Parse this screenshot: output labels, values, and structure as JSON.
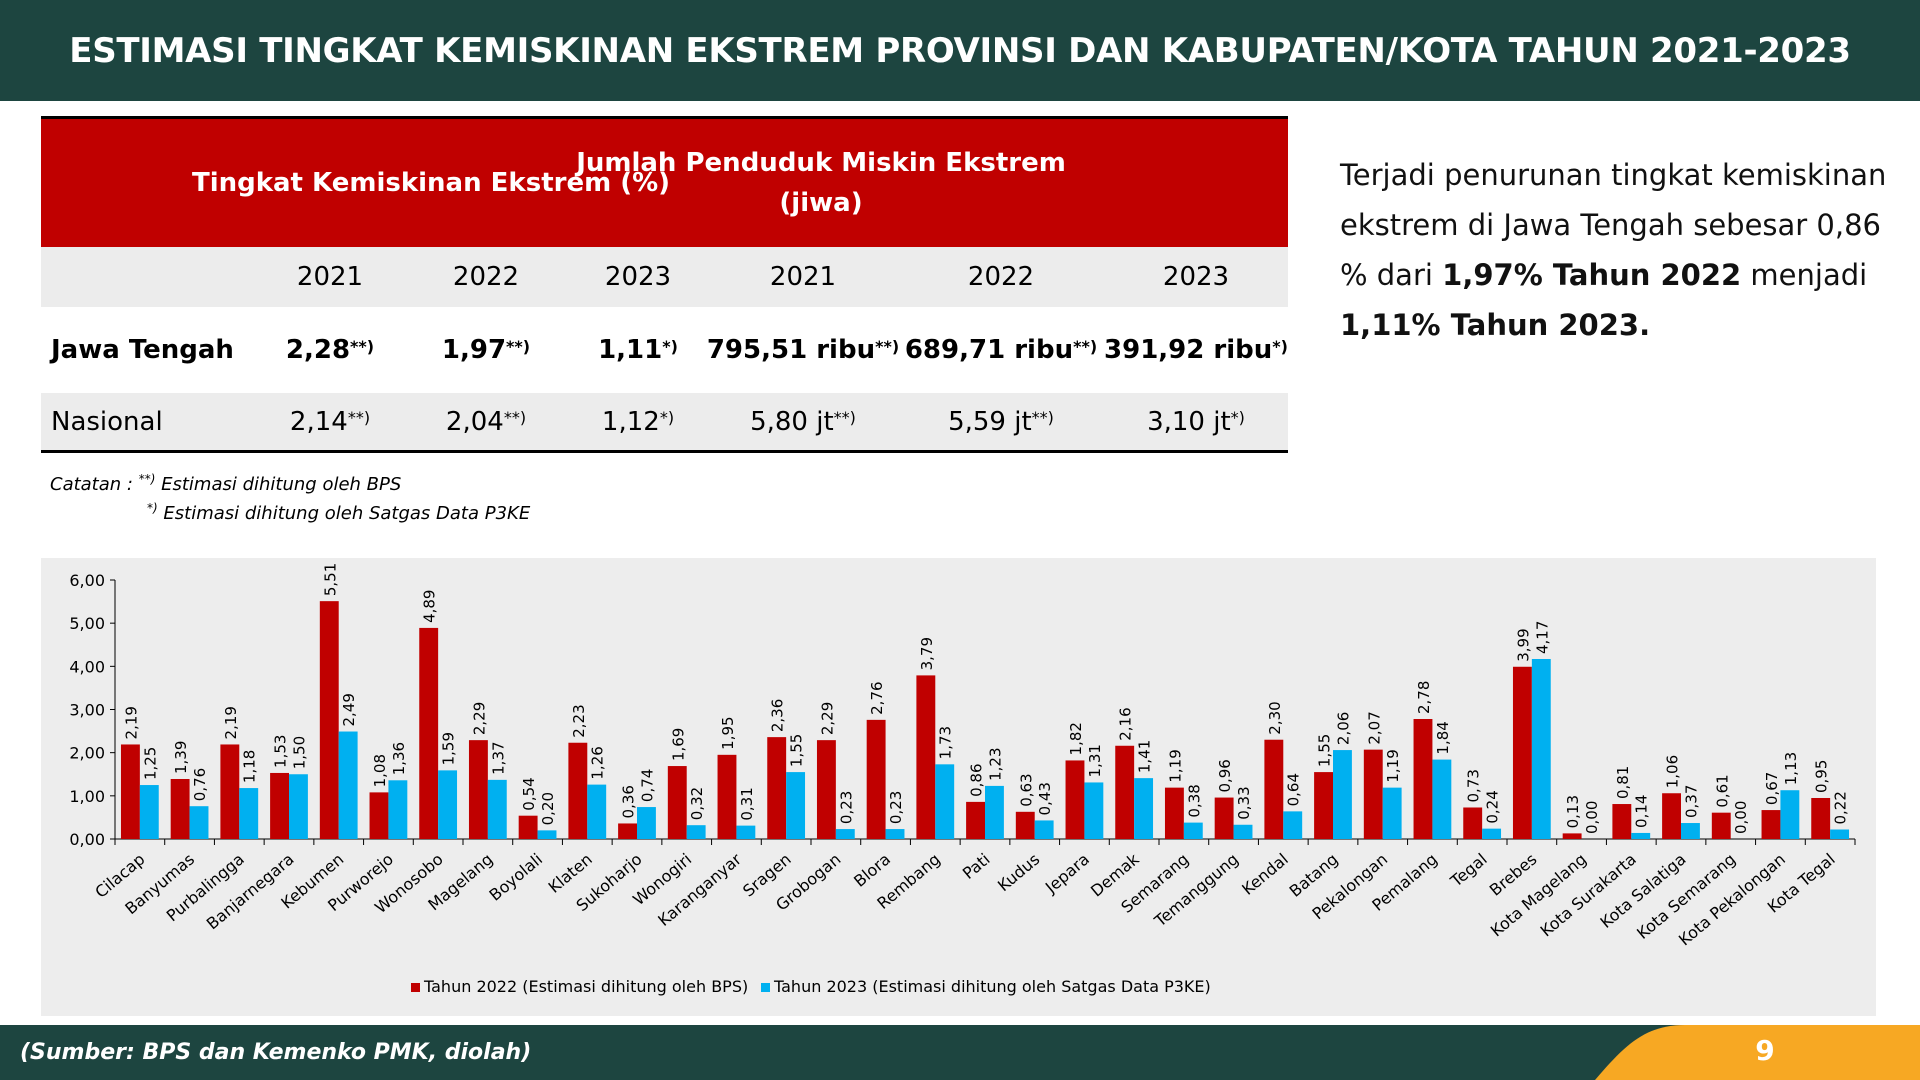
{
  "title": "ESTIMASI TINGKAT KEMISKINAN EKSTREM PROVINSI DAN KABUPATEN/KOTA TAHUN 2021-2023",
  "table": {
    "group1": "Tingkat Kemiskinan Ekstrem (%)",
    "group2_line1": "Jumlah Penduduk Miskin Ekstrem",
    "group2_line2": "(jiwa)",
    "years": [
      "2021",
      "2022",
      "2023",
      "2021",
      "2022",
      "2023"
    ],
    "rows": [
      {
        "label": "Jawa Tengah",
        "cells": [
          {
            "v": "2,28",
            "s": "**)"
          },
          {
            "v": "1,97",
            "s": "**)"
          },
          {
            "v": "1,11",
            "s": "*)"
          },
          {
            "v": "795,51 ribu",
            "s": "**)"
          },
          {
            "v": "689,71 ribu",
            "s": "**)"
          },
          {
            "v": "391,92 ribu",
            "s": "*)"
          }
        ]
      },
      {
        "label": "Nasional",
        "cells": [
          {
            "v": "2,14",
            "s": "**)"
          },
          {
            "v": "2,04",
            "s": "**)"
          },
          {
            "v": "1,12",
            "s": "*)"
          },
          {
            "v": "5,80 jt",
            "s": "**)"
          },
          {
            "v": "5,59 jt",
            "s": "**)"
          },
          {
            "v": "3,10 jt",
            "s": "*)"
          }
        ]
      }
    ]
  },
  "notes": {
    "prefix": "Catatan : ",
    "s1": "**)",
    "t1": " Estimasi dihitung oleh BPS",
    "s2": "*)",
    "t2": " Estimasi dihitung oleh Satgas Data P3KE"
  },
  "summary": {
    "p1": "Terjadi penurunan tingkat kemiskinan ekstrem di Jawa Tengah sebesar 0,86 % dari ",
    "b1": "1,97% Tahun 2022",
    "p2": " menjadi ",
    "b2": "1,11% Tahun 2023."
  },
  "chart_data": {
    "type": "bar",
    "categories": [
      "Cilacap",
      "Banyumas",
      "Purbalingga",
      "Banjarnegara",
      "Kebumen",
      "Purworejo",
      "Wonosobo",
      "Magelang",
      "Boyolali",
      "Klaten",
      "Sukoharjo",
      "Wonogiri",
      "Karanganyar",
      "Sragen",
      "Grobogan",
      "Blora",
      "Rembang",
      "Pati",
      "Kudus",
      "Jepara",
      "Demak",
      "Semarang",
      "Temanggung",
      "Kendal",
      "Batang",
      "Pekalongan",
      "Pemalang",
      "Tegal",
      "Brebes",
      "Kota Magelang",
      "Kota Surakarta",
      "Kota Salatiga",
      "Kota Semarang",
      "Kota Pekalongan",
      "Kota Tegal"
    ],
    "series": [
      {
        "name": "Tahun 2022 (Estimasi dihitung oleh BPS)",
        "color": "#c00000",
        "values": [
          2.19,
          1.39,
          2.19,
          1.53,
          5.51,
          1.08,
          4.89,
          2.29,
          0.54,
          2.23,
          0.36,
          1.69,
          1.95,
          2.36,
          2.29,
          2.76,
          3.79,
          0.86,
          0.63,
          1.82,
          2.16,
          1.19,
          0.96,
          2.3,
          1.55,
          2.07,
          2.78,
          0.73,
          3.99,
          0.13,
          0.81,
          1.06,
          0.61,
          0.67,
          0.95
        ]
      },
      {
        "name": "Tahun 2023 (Estimasi dihitung oleh Satgas Data P3KE)",
        "color": "#00b0f0",
        "values": [
          1.25,
          0.76,
          1.18,
          1.5,
          2.49,
          1.36,
          1.59,
          1.37,
          0.2,
          1.26,
          0.74,
          0.32,
          0.31,
          1.55,
          0.23,
          0.23,
          1.73,
          1.23,
          0.43,
          1.31,
          1.41,
          0.38,
          0.33,
          0.64,
          2.06,
          1.19,
          1.84,
          0.24,
          4.17,
          0.0,
          0.14,
          0.37,
          0.0,
          1.13,
          0.22
        ]
      }
    ],
    "yticks": [
      "0,00",
      "1,00",
      "2,00",
      "3,00",
      "4,00",
      "5,00",
      "6,00"
    ],
    "ylim": [
      0,
      6
    ],
    "legend": "bottom"
  },
  "footer": {
    "source": "(Sumber: BPS dan Kemenko PMK, diolah)",
    "page": "9"
  }
}
